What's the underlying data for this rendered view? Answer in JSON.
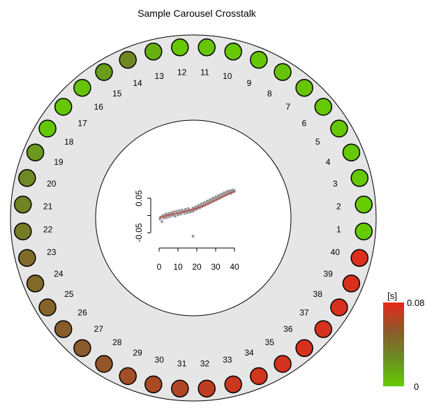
{
  "chart_data": [
    {
      "type": "carousel",
      "title": "Sample Carousel Crosstalk",
      "positions": [
        {
          "label": "1",
          "value": 0.0
        },
        {
          "label": "2",
          "value": 0.0
        },
        {
          "label": "3",
          "value": 0.002
        },
        {
          "label": "4",
          "value": 0.002
        },
        {
          "label": "5",
          "value": 0.003
        },
        {
          "label": "6",
          "value": 0.002
        },
        {
          "label": "7",
          "value": 0.003
        },
        {
          "label": "8",
          "value": 0.004
        },
        {
          "label": "9",
          "value": 0.003
        },
        {
          "label": "10",
          "value": 0.002
        },
        {
          "label": "11",
          "value": 0.003
        },
        {
          "label": "12",
          "value": 0.002
        },
        {
          "label": "13",
          "value": 0.012
        },
        {
          "label": "14",
          "value": 0.03
        },
        {
          "label": "15",
          "value": 0.02
        },
        {
          "label": "16",
          "value": 0.004
        },
        {
          "label": "17",
          "value": 0.003
        },
        {
          "label": "18",
          "value": 0.002
        },
        {
          "label": "19",
          "value": 0.022
        },
        {
          "label": "20",
          "value": 0.03
        },
        {
          "label": "21",
          "value": 0.032
        },
        {
          "label": "22",
          "value": 0.036
        },
        {
          "label": "23",
          "value": 0.044
        },
        {
          "label": "24",
          "value": 0.046
        },
        {
          "label": "25",
          "value": 0.048
        },
        {
          "label": "26",
          "value": 0.052
        },
        {
          "label": "27",
          "value": 0.053
        },
        {
          "label": "28",
          "value": 0.056
        },
        {
          "label": "29",
          "value": 0.06
        },
        {
          "label": "30",
          "value": 0.062
        },
        {
          "label": "31",
          "value": 0.064
        },
        {
          "label": "32",
          "value": 0.068
        },
        {
          "label": "33",
          "value": 0.072
        },
        {
          "label": "34",
          "value": 0.073
        },
        {
          "label": "35",
          "value": 0.074
        },
        {
          "label": "36",
          "value": 0.075
        },
        {
          "label": "37",
          "value": 0.074
        },
        {
          "label": "38",
          "value": 0.076
        },
        {
          "label": "39",
          "value": 0.075
        },
        {
          "label": "40",
          "value": 0.076
        }
      ],
      "color_scale": {
        "label": "[s]",
        "min": 0,
        "max": 0.08,
        "min_label": "0",
        "max_label": "0.08",
        "colors": [
          "#66cc00",
          "#6b8e23",
          "#8b5a2b",
          "#e8281a"
        ]
      }
    },
    {
      "type": "scatter",
      "xlim": [
        0,
        40
      ],
      "ylim": [
        -0.07,
        0.08
      ],
      "x_ticks": [
        "0",
        "10",
        "20",
        "30",
        "40"
      ],
      "y_ticks": [
        "-0.05",
        "0.05"
      ],
      "point_color": "#999999",
      "fit_color": "#cc3333",
      "points": [
        [
          0.5,
          -0.01
        ],
        [
          1,
          -0.005
        ],
        [
          1.5,
          -0.018
        ],
        [
          2,
          0.0
        ],
        [
          2.5,
          -0.008
        ],
        [
          3,
          -0.002
        ],
        [
          3.5,
          0.004
        ],
        [
          4,
          -0.006
        ],
        [
          4.5,
          0.002
        ],
        [
          5,
          0.006
        ],
        [
          5.5,
          -0.004
        ],
        [
          6,
          0.003
        ],
        [
          6.5,
          0.008
        ],
        [
          7,
          0.0
        ],
        [
          7.5,
          0.01
        ],
        [
          8,
          0.004
        ],
        [
          8.5,
          -0.002
        ],
        [
          9,
          0.012
        ],
        [
          9.5,
          0.006
        ],
        [
          10,
          0.002
        ],
        [
          10.5,
          0.014
        ],
        [
          11,
          0.008
        ],
        [
          11.5,
          0.004
        ],
        [
          12,
          0.016
        ],
        [
          12.5,
          0.01
        ],
        [
          13,
          0.012
        ],
        [
          13.5,
          0.006
        ],
        [
          14,
          0.018
        ],
        [
          14.5,
          0.012
        ],
        [
          15,
          0.008
        ],
        [
          15.5,
          0.02
        ],
        [
          16,
          0.014
        ],
        [
          16.5,
          0.01
        ],
        [
          17,
          0.016
        ],
        [
          17.5,
          0.012
        ],
        [
          18,
          0.022
        ],
        [
          18,
          -0.06
        ],
        [
          18.5,
          0.014
        ],
        [
          19,
          0.02
        ],
        [
          19.5,
          0.026
        ],
        [
          20,
          0.018
        ],
        [
          20.5,
          0.024
        ],
        [
          21,
          0.03
        ],
        [
          21.5,
          0.022
        ],
        [
          22,
          0.028
        ],
        [
          22.5,
          0.034
        ],
        [
          23,
          0.026
        ],
        [
          23.5,
          0.032
        ],
        [
          24,
          0.038
        ],
        [
          24.5,
          0.03
        ],
        [
          25,
          0.036
        ],
        [
          25.5,
          0.042
        ],
        [
          26,
          0.034
        ],
        [
          26.5,
          0.04
        ],
        [
          27,
          0.046
        ],
        [
          27.5,
          0.038
        ],
        [
          28,
          0.044
        ],
        [
          28.5,
          0.05
        ],
        [
          29,
          0.042
        ],
        [
          29.5,
          0.048
        ],
        [
          30,
          0.054
        ],
        [
          30.5,
          0.046
        ],
        [
          31,
          0.052
        ],
        [
          31.5,
          0.058
        ],
        [
          32,
          0.05
        ],
        [
          32.5,
          0.056
        ],
        [
          33,
          0.062
        ],
        [
          33.5,
          0.054
        ],
        [
          34,
          0.06
        ],
        [
          34.5,
          0.066
        ],
        [
          35,
          0.058
        ],
        [
          35.5,
          0.064
        ],
        [
          36,
          0.07
        ],
        [
          36.5,
          0.062
        ],
        [
          37,
          0.068
        ],
        [
          37.5,
          0.072
        ],
        [
          38,
          0.064
        ],
        [
          38.5,
          0.07
        ],
        [
          39,
          0.074
        ],
        [
          39.5,
          0.068
        ],
        [
          40,
          0.072
        ]
      ],
      "fit": [
        [
          0,
          -0.006
        ],
        [
          5,
          0.001
        ],
        [
          10,
          0.007
        ],
        [
          15,
          0.014
        ],
        [
          20,
          0.021
        ],
        [
          25,
          0.031
        ],
        [
          30,
          0.044
        ],
        [
          35,
          0.058
        ],
        [
          40,
          0.07
        ]
      ]
    }
  ]
}
